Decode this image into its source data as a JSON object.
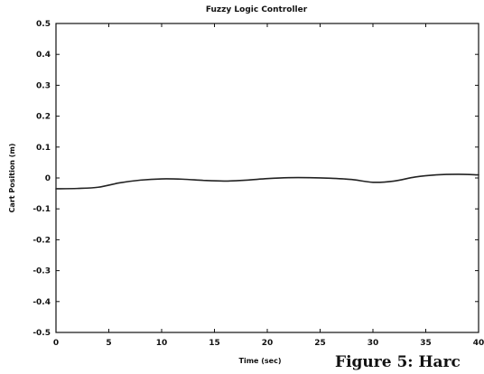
{
  "chart_data": {
    "type": "line",
    "title": "Fuzzy Logic Controller",
    "xlabel": "Time (sec)",
    "ylabel": "Cart Position (m)",
    "xlim": [
      0,
      40
    ],
    "ylim": [
      -0.5,
      0.5
    ],
    "grid": false,
    "x_ticks": [
      0,
      5,
      10,
      15,
      20,
      25,
      30,
      35,
      40
    ],
    "y_ticks": [
      0.5,
      0.4,
      0.3,
      0.2,
      0.1,
      0,
      -0.1,
      -0.2,
      -0.3,
      -0.4,
      -0.5
    ],
    "x_tick_labels": [
      "0",
      "5",
      "10",
      "15",
      "20",
      "25",
      "30",
      "35",
      "40"
    ],
    "y_tick_labels": [
      "0.5",
      "0.4",
      "0.3",
      "0.2",
      "0.1",
      "0",
      "-0.1",
      "-0.2",
      "-0.3",
      "-0.4",
      "-0.5"
    ],
    "series": [
      {
        "x": [
          0,
          2,
          4,
          6,
          8,
          10,
          12,
          14,
          16,
          18,
          20,
          22,
          24,
          26,
          28,
          30,
          32,
          34,
          36,
          38,
          40
        ],
        "values": [
          -0.035,
          -0.034,
          -0.03,
          -0.016,
          -0.007,
          -0.003,
          -0.004,
          -0.008,
          -0.01,
          -0.007,
          -0.002,
          0.001,
          0.001,
          -0.001,
          -0.005,
          -0.014,
          -0.01,
          0.003,
          0.01,
          0.012,
          0.01
        ]
      }
    ],
    "colors": {
      "line": "#222222",
      "axes": "#111111"
    }
  },
  "caption": {
    "text": "Figure 5: Harc"
  }
}
